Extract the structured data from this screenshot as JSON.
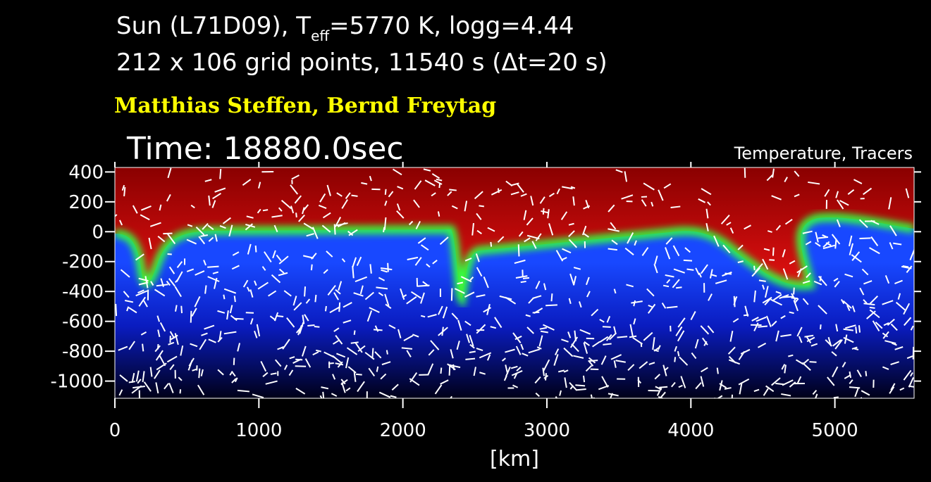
{
  "chart_data": {
    "type": "field",
    "title": {
      "prefix": "Sun (L71D09), T",
      "subscript": "eff",
      "suffix": "=5770 K, logg=4.44"
    },
    "subtitle": "212 x 106 grid points, 11540 s (Δt=20 s)",
    "authors": "Matthias Steffen, Bernd Freytag",
    "time_label": "Time: 18880.0sec",
    "field_label": "Temperature, Tracers",
    "xlabel": "[km]",
    "xlim": [
      0,
      5550
    ],
    "ylim": [
      -1115,
      430
    ],
    "xticks": [
      0,
      1000,
      2000,
      3000,
      4000,
      5000
    ],
    "yticks": [
      400,
      200,
      0,
      -200,
      -400,
      -600,
      -800,
      -1000
    ]
  }
}
